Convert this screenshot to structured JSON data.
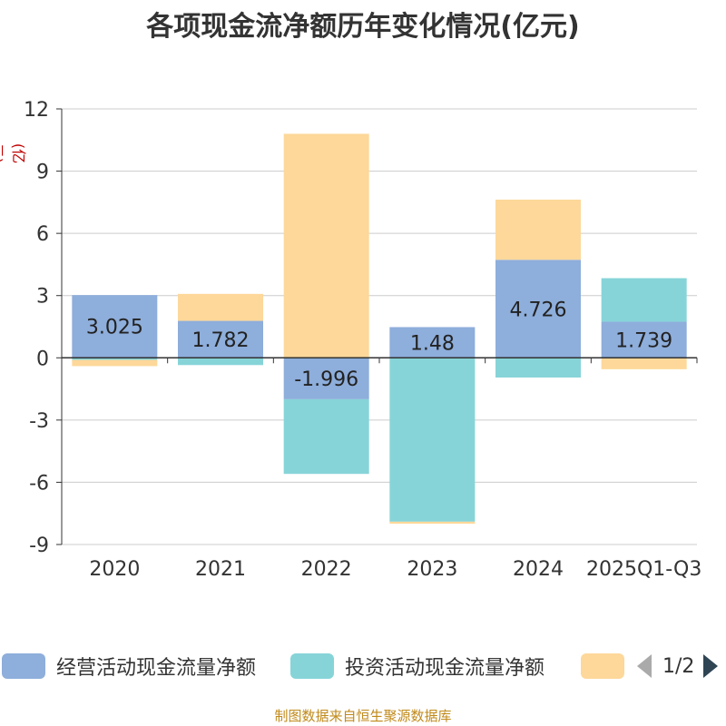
{
  "chart_data": {
    "type": "bar",
    "stacked": true,
    "title": "各项现金流净额历年变化情况(亿元)",
    "ylabel": "(亿元)",
    "ylim": [
      -9,
      12
    ],
    "yticks": [
      12,
      9,
      6,
      3,
      0,
      -3,
      -6,
      -9
    ],
    "ytick_labels": [
      "12",
      "9",
      "6",
      "3",
      "0",
      "-3",
      "-6",
      "-9"
    ],
    "categories": [
      "2020",
      "2021",
      "2022",
      "2023",
      "2024",
      "2025Q1-Q3"
    ],
    "series": [
      {
        "name": "经营活动现金流量净额",
        "color": "#8eaedb",
        "values": [
          3.025,
          1.782,
          -1.996,
          1.48,
          4.726,
          1.739
        ]
      },
      {
        "name": "投资活动现金流量净额",
        "color": "#86d4d8",
        "values": [
          -0.1,
          -0.35,
          -3.6,
          -7.9,
          -0.95,
          2.1
        ]
      },
      {
        "name": "",
        "color": "#fdd89a",
        "values": [
          -0.3,
          1.3,
          10.8,
          -0.1,
          2.9,
          -0.55
        ]
      }
    ],
    "data_labels": [
      "3.025",
      "1.782",
      "-1.996",
      "1.48",
      "4.726",
      "1.739"
    ],
    "legend_position": "bottom"
  },
  "legend": {
    "page": "1/2"
  },
  "source": "制图数据来自恒生聚源数据库"
}
